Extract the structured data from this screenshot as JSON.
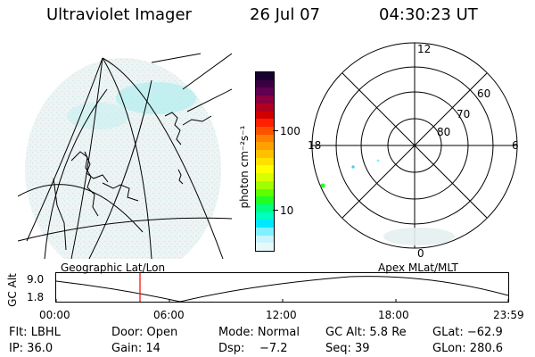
{
  "header": {
    "instrument": "Ultraviolet Imager",
    "date": "26 Jul 07",
    "time": "04:30:23 UT"
  },
  "colorbar": {
    "label": "photon cm⁻²s⁻¹",
    "ticks": [
      "100",
      "10"
    ],
    "colors": [
      "#1a0030",
      "#3a0040",
      "#600050",
      "#8a0040",
      "#b00020",
      "#d00000",
      "#ff2000",
      "#ff5000",
      "#ff8000",
      "#ffa000",
      "#ffc000",
      "#ffe000",
      "#ffff00",
      "#d8ff00",
      "#a0ff00",
      "#60ff00",
      "#20ff20",
      "#00ff80",
      "#00ffc0",
      "#00e8ff",
      "#80f0ff",
      "#c8f4ff",
      "#e8f8f8"
    ]
  },
  "geo_panel": {
    "label": "Geographic Lat/Lon"
  },
  "polar_panel": {
    "label": "Apex MLat/MLT",
    "mlt_labels": {
      "top": "12",
      "left": "18",
      "right": "6",
      "bottom": "0"
    },
    "lat_labels": [
      "60",
      "70",
      "80"
    ]
  },
  "timeline": {
    "ylabel": "GC Alt",
    "y_ticks": [
      "9.0",
      "1.8"
    ],
    "x_ticks": [
      "00:00",
      "06:00",
      "12:00",
      "18:00",
      "23:59"
    ]
  },
  "info": {
    "r1": {
      "filter": "Flt: LBHL",
      "door": "Door: Open",
      "mode": "Mode: Normal",
      "gcalt": "GC Alt: 5.8 Re",
      "glat": "GLat: −62.9"
    },
    "r2": {
      "ip": "IP: 36.0",
      "gain": "Gain: 14",
      "dsp": "Dsp:    −7.2",
      "seq": "Seq: 39",
      "glon": "GLon: 280.6"
    }
  }
}
